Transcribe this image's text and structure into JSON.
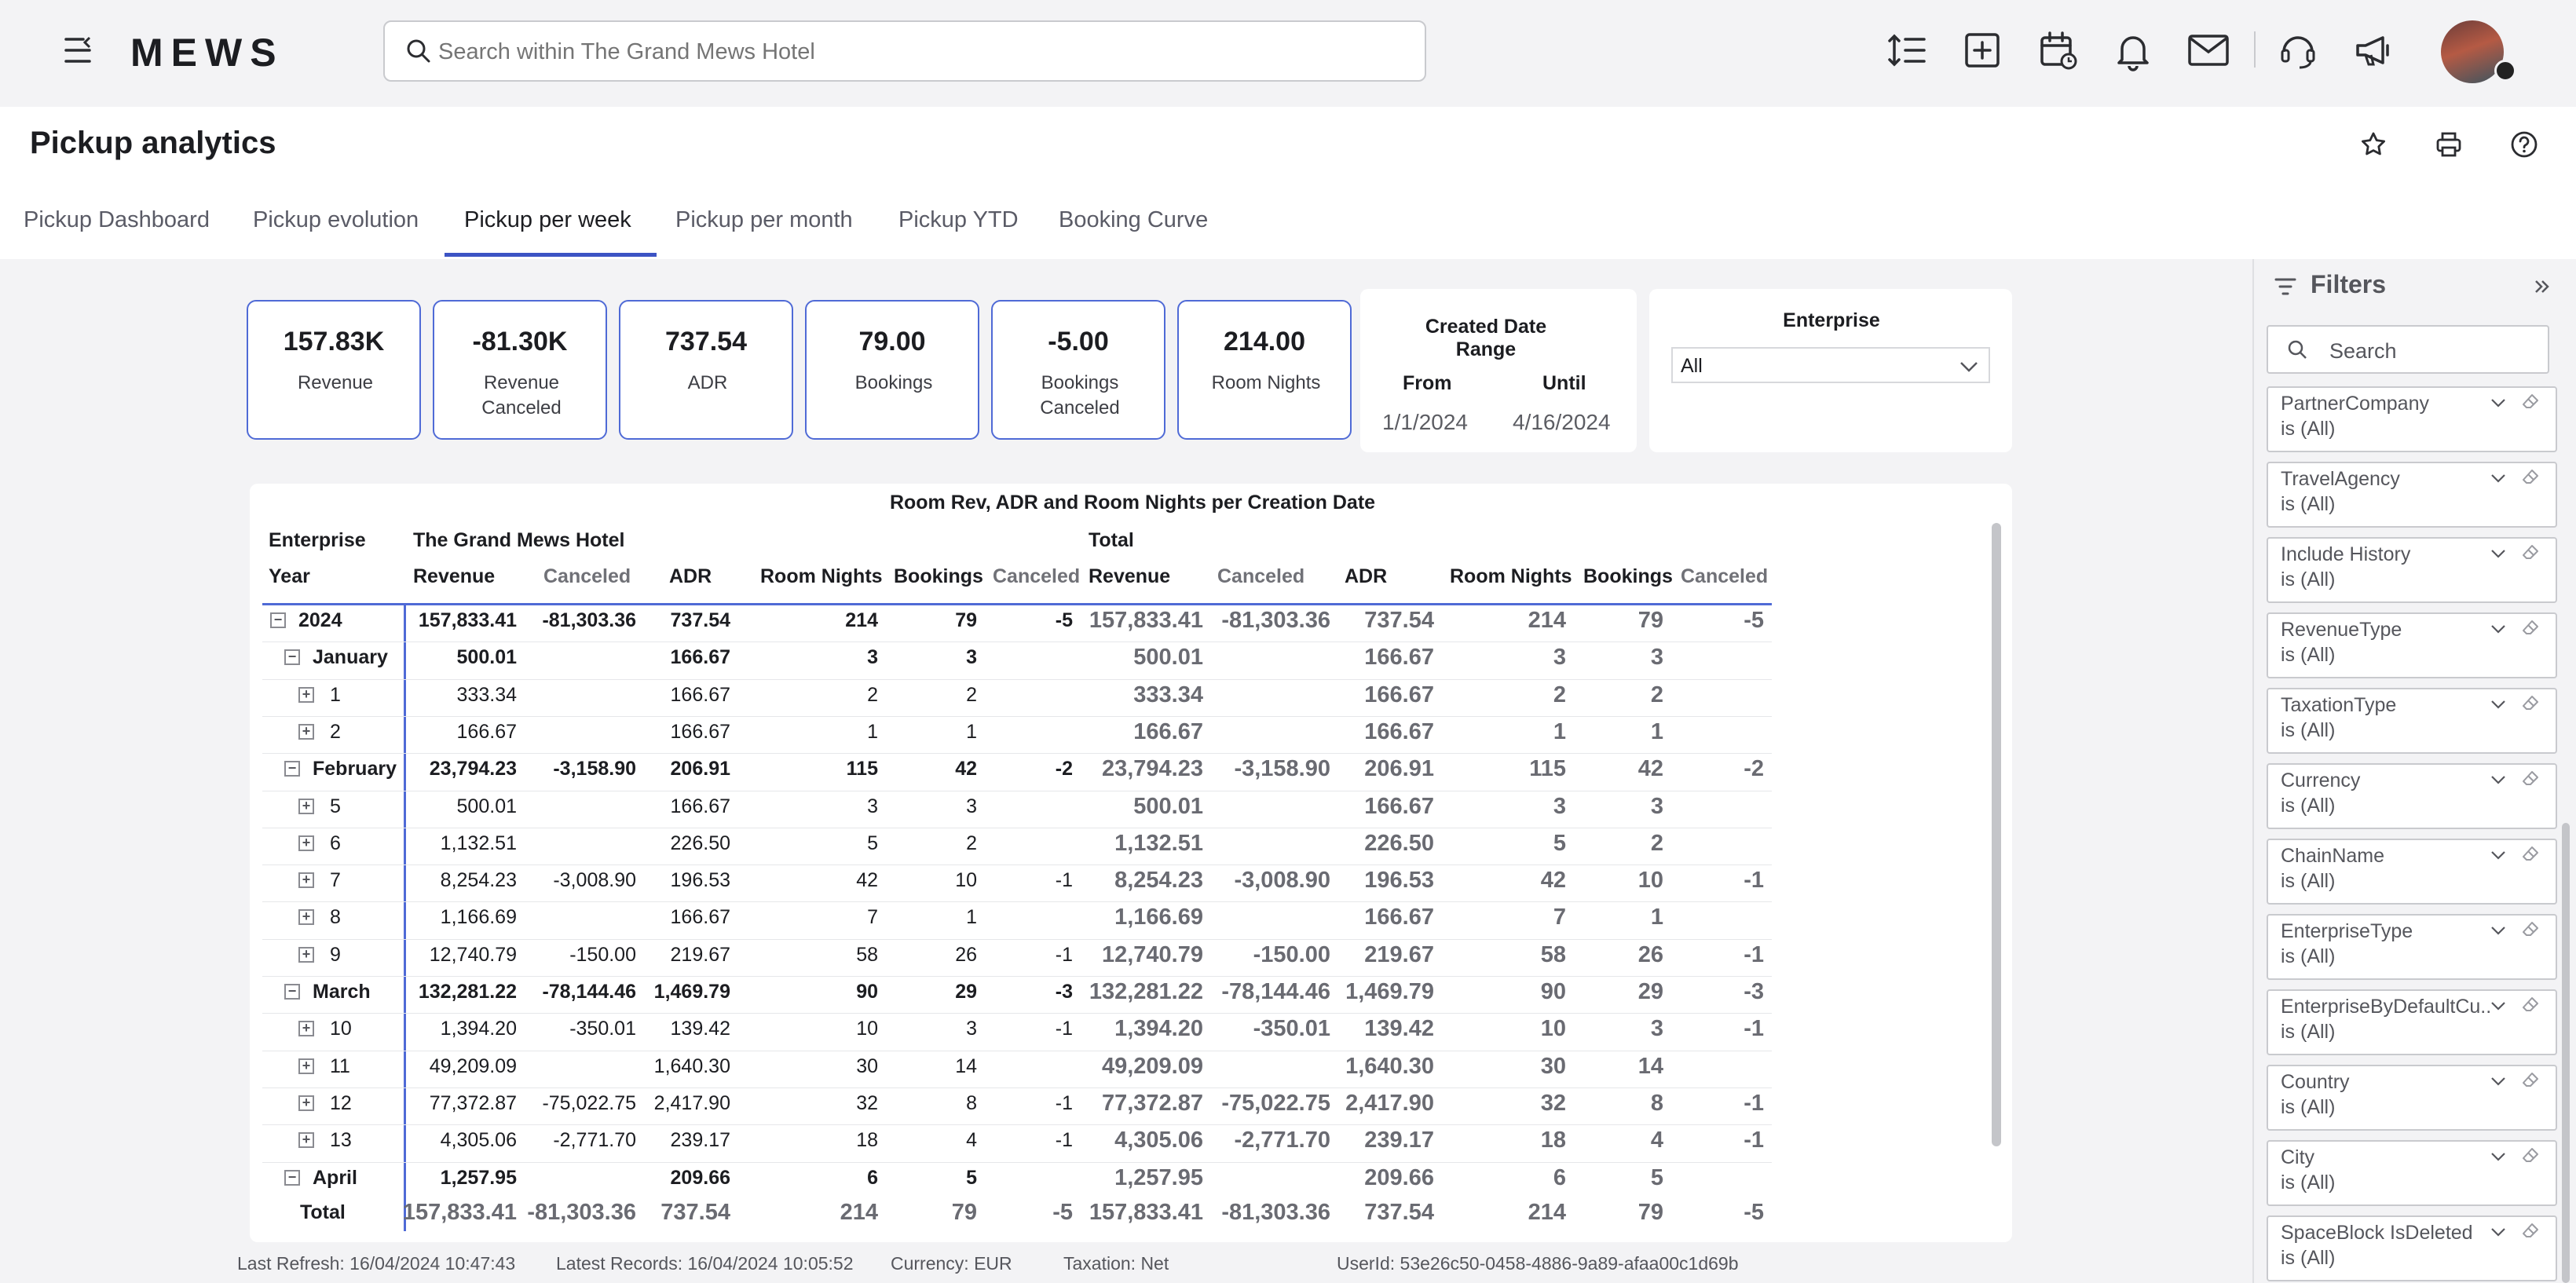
{
  "app": {
    "logo": "MEWS",
    "search_placeholder": "Search within The Grand Mews Hotel"
  },
  "topbar_icons": [
    "line-spacing-icon",
    "add-square-icon",
    "calendar-icon",
    "bell-icon",
    "mail-icon",
    "support-icon",
    "megaphone-icon"
  ],
  "page": {
    "title": "Pickup analytics"
  },
  "tabs": [
    {
      "label": "Pickup Dashboard",
      "active": false
    },
    {
      "label": "Pickup evolution",
      "active": false
    },
    {
      "label": "Pickup per week",
      "active": true
    },
    {
      "label": "Pickup per month",
      "active": false
    },
    {
      "label": "Pickup YTD",
      "active": false
    },
    {
      "label": "Booking Curve",
      "active": false
    }
  ],
  "kpis": [
    {
      "value": "157.83K",
      "label": "Revenue"
    },
    {
      "value": "-81.30K",
      "label": "Revenue Canceled"
    },
    {
      "value": "737.54",
      "label": "ADR"
    },
    {
      "value": "79.00",
      "label": "Bookings"
    },
    {
      "value": "-5.00",
      "label": "Bookings Canceled"
    },
    {
      "value": "214.00",
      "label": "Room Nights"
    }
  ],
  "date_range": {
    "title": "Created Date Range",
    "from_label": "From",
    "until_label": "Until",
    "from": "1/1/2024",
    "until": "4/16/2024"
  },
  "enterprise_filter": {
    "title": "Enterprise",
    "value": "All"
  },
  "table": {
    "title": "Room Rev, ADR and Room Nights per Creation Date",
    "enterprise_label": "Enterprise",
    "year_label": "Year",
    "group1": "The Grand Mews Hotel",
    "group2": "Total",
    "columns": [
      "Revenue",
      "Canceled",
      "ADR",
      "Room Nights",
      "Bookings",
      "Canceled"
    ],
    "rows": [
      {
        "label": "2024",
        "level": 0,
        "exp": "−",
        "bold": true,
        "v": [
          "157,833.41",
          "-81,303.36",
          "737.54",
          "214",
          "79",
          "-5"
        ]
      },
      {
        "label": "January",
        "level": 1,
        "exp": "−",
        "bold": true,
        "v": [
          "500.01",
          "",
          "166.67",
          "3",
          "3",
          ""
        ]
      },
      {
        "label": "1",
        "level": 2,
        "exp": "+",
        "bold": false,
        "v": [
          "333.34",
          "",
          "166.67",
          "2",
          "2",
          ""
        ]
      },
      {
        "label": "2",
        "level": 2,
        "exp": "+",
        "bold": false,
        "v": [
          "166.67",
          "",
          "166.67",
          "1",
          "1",
          ""
        ]
      },
      {
        "label": "February",
        "level": 1,
        "exp": "−",
        "bold": true,
        "v": [
          "23,794.23",
          "-3,158.90",
          "206.91",
          "115",
          "42",
          "-2"
        ]
      },
      {
        "label": "5",
        "level": 2,
        "exp": "+",
        "bold": false,
        "v": [
          "500.01",
          "",
          "166.67",
          "3",
          "3",
          ""
        ]
      },
      {
        "label": "6",
        "level": 2,
        "exp": "+",
        "bold": false,
        "v": [
          "1,132.51",
          "",
          "226.50",
          "5",
          "2",
          ""
        ]
      },
      {
        "label": "7",
        "level": 2,
        "exp": "+",
        "bold": false,
        "v": [
          "8,254.23",
          "-3,008.90",
          "196.53",
          "42",
          "10",
          "-1"
        ]
      },
      {
        "label": "8",
        "level": 2,
        "exp": "+",
        "bold": false,
        "v": [
          "1,166.69",
          "",
          "166.67",
          "7",
          "1",
          ""
        ]
      },
      {
        "label": "9",
        "level": 2,
        "exp": "+",
        "bold": false,
        "v": [
          "12,740.79",
          "-150.00",
          "219.67",
          "58",
          "26",
          "-1"
        ]
      },
      {
        "label": "March",
        "level": 1,
        "exp": "−",
        "bold": true,
        "v": [
          "132,281.22",
          "-78,144.46",
          "1,469.79",
          "90",
          "29",
          "-3"
        ]
      },
      {
        "label": "10",
        "level": 2,
        "exp": "+",
        "bold": false,
        "v": [
          "1,394.20",
          "-350.01",
          "139.42",
          "10",
          "3",
          "-1"
        ]
      },
      {
        "label": "11",
        "level": 2,
        "exp": "+",
        "bold": false,
        "v": [
          "49,209.09",
          "",
          "1,640.30",
          "30",
          "14",
          ""
        ]
      },
      {
        "label": "12",
        "level": 2,
        "exp": "+",
        "bold": false,
        "v": [
          "77,372.87",
          "-75,022.75",
          "2,417.90",
          "32",
          "8",
          "-1"
        ]
      },
      {
        "label": "13",
        "level": 2,
        "exp": "+",
        "bold": false,
        "v": [
          "4,305.06",
          "-2,771.70",
          "239.17",
          "18",
          "4",
          "-1"
        ]
      },
      {
        "label": "April",
        "level": 1,
        "exp": "−",
        "bold": true,
        "v": [
          "1,257.95",
          "",
          "209.66",
          "6",
          "5",
          ""
        ]
      }
    ],
    "total": {
      "label": "Total",
      "v": [
        "157,833.41",
        "-81,303.36",
        "737.54",
        "214",
        "79",
        "-5"
      ]
    }
  },
  "status": {
    "last_refresh": "Last Refresh: 16/04/2024 10:47:43",
    "latest_records": "Latest Records: 16/04/2024 10:05:52",
    "currency": "Currency: EUR",
    "taxation": "Taxation: Net",
    "user_id": "UserId: 53e26c50-0458-4886-9a89-afaa00c1d69b"
  },
  "filters": {
    "title": "Filters",
    "search_placeholder": "Search",
    "items": [
      {
        "name": "PartnerCompany",
        "state": "is (All)"
      },
      {
        "name": "TravelAgency",
        "state": "is (All)"
      },
      {
        "name": "Include History",
        "state": "is (All)"
      },
      {
        "name": "RevenueType",
        "state": "is (All)"
      },
      {
        "name": "TaxationType",
        "state": "is (All)"
      },
      {
        "name": "Currency",
        "state": "is (All)"
      },
      {
        "name": "ChainName",
        "state": "is (All)"
      },
      {
        "name": "EnterpriseType",
        "state": "is (All)"
      },
      {
        "name": "EnterpriseByDefaultCu...",
        "state": "is (All)"
      },
      {
        "name": "Country",
        "state": "is (All)"
      },
      {
        "name": "City",
        "state": "is (All)"
      },
      {
        "name": "SpaceBlock IsDeleted",
        "state": "is (All)"
      }
    ]
  }
}
